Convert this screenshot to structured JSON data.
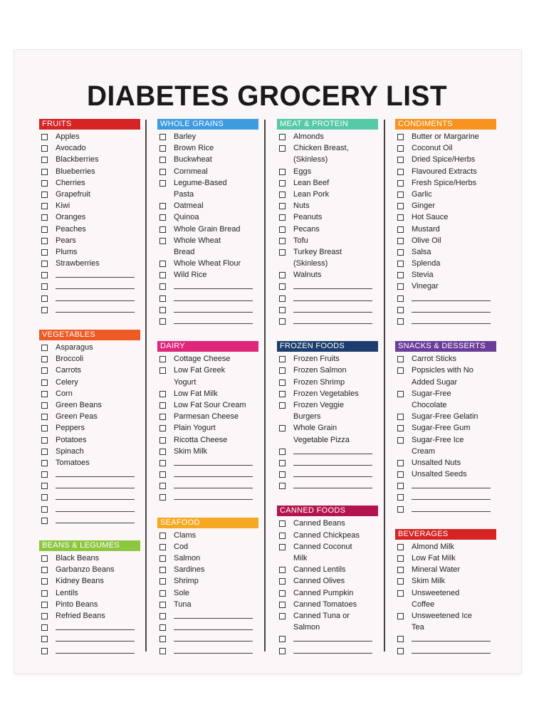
{
  "title": "DIABETES GROCERY LIST",
  "colors": {
    "fruits": "#d62424",
    "vegetables": "#ee5a24",
    "beans_legumes": "#8dc63f",
    "whole_grains": "#3d9be0",
    "dairy": "#e0267a",
    "seafood": "#f7a823",
    "meat_protein": "#55c9a8",
    "frozen_foods": "#1c3d6e",
    "canned_foods": "#b3144f",
    "condiments": "#f7931e",
    "snacks_desserts": "#6a3d9a",
    "beverages": "#d62424"
  },
  "columns": [
    {
      "sections": [
        {
          "key": "fruits",
          "title": "FRUITS",
          "gap_before": 0,
          "items": [
            [
              "Apples"
            ],
            [
              "Avocado"
            ],
            [
              "Blackberries"
            ],
            [
              "Blueberries"
            ],
            [
              "Cherries"
            ],
            [
              "Grapefruit"
            ],
            [
              "Kiwi"
            ],
            [
              "Oranges"
            ],
            [
              "Peaches"
            ],
            [
              "Pears"
            ],
            [
              "Plums"
            ],
            [
              "Strawberries"
            ],
            [
              ""
            ],
            [
              ""
            ],
            [
              ""
            ],
            [
              ""
            ]
          ]
        },
        {
          "key": "vegetables",
          "title": "VEGETABLES",
          "gap_before": 19,
          "items": [
            [
              "Asparagus"
            ],
            [
              "Broccoli"
            ],
            [
              "Carrots"
            ],
            [
              "Celery"
            ],
            [
              "Corn"
            ],
            [
              "Green Beans"
            ],
            [
              "Green Peas"
            ],
            [
              "Peppers"
            ],
            [
              "Potatoes"
            ],
            [
              "Spinach"
            ],
            [
              "Tomatoes"
            ],
            [
              ""
            ],
            [
              ""
            ],
            [
              ""
            ],
            [
              ""
            ],
            [
              ""
            ]
          ]
        },
        {
          "key": "beans_legumes",
          "title": "BEANS & LEGUMES",
          "gap_before": 19,
          "items": [
            [
              "Black Beans"
            ],
            [
              "Garbanzo Beans"
            ],
            [
              "Kidney Beans"
            ],
            [
              "Lentils"
            ],
            [
              "Pinto Beans"
            ],
            [
              "Refried Beans"
            ],
            [
              ""
            ],
            [
              ""
            ],
            [
              ""
            ]
          ]
        }
      ]
    },
    {
      "sections": [
        {
          "key": "whole_grains",
          "title": "WHOLE GRAINS",
          "gap_before": 0,
          "items": [
            [
              "Barley"
            ],
            [
              "Brown Rice"
            ],
            [
              "Buckwheat"
            ],
            [
              "Cornmeal"
            ],
            [
              "Legume-Based",
              "Pasta"
            ],
            [
              "Oatmeal"
            ],
            [
              "Quinoa"
            ],
            [
              "Whole Grain Bread"
            ],
            [
              "Whole Wheat",
              "Bread"
            ],
            [
              "Whole Wheat Flour"
            ],
            [
              "Wild Rice"
            ],
            [
              ""
            ],
            [
              ""
            ],
            [
              ""
            ],
            [
              ""
            ]
          ]
        },
        {
          "key": "dairy",
          "title": "DAIRY",
          "gap_before": 19,
          "items": [
            [
              "Cottage Cheese"
            ],
            [
              "Low Fat Greek",
              "Yogurt"
            ],
            [
              "Low Fat Milk"
            ],
            [
              "Low Fat Sour Cream"
            ],
            [
              "Parmesan Cheese"
            ],
            [
              "Plain Yogurt"
            ],
            [
              "Ricotta Cheese"
            ],
            [
              "Skim Milk"
            ],
            [
              ""
            ],
            [
              ""
            ],
            [
              ""
            ],
            [
              ""
            ]
          ]
        },
        {
          "key": "seafood",
          "title": "SEAFOOD",
          "gap_before": 19,
          "items": [
            [
              "Clams"
            ],
            [
              "Cod"
            ],
            [
              "Salmon"
            ],
            [
              "Sardines"
            ],
            [
              "Shrimp"
            ],
            [
              "Sole"
            ],
            [
              "Tuna"
            ],
            [
              ""
            ],
            [
              ""
            ],
            [
              ""
            ],
            [
              ""
            ]
          ]
        }
      ]
    },
    {
      "sections": [
        {
          "key": "meat_protein",
          "title": "MEAT & PROTEIN",
          "gap_before": 0,
          "items": [
            [
              "Almonds"
            ],
            [
              "Chicken Breast,",
              "(Skinless)"
            ],
            [
              "Eggs"
            ],
            [
              "Lean Beef"
            ],
            [
              "Lean Pork"
            ],
            [
              "Nuts"
            ],
            [
              "Peanuts"
            ],
            [
              "Pecans"
            ],
            [
              "Tofu"
            ],
            [
              "Turkey Breast",
              "(Skinless)"
            ],
            [
              "Walnuts"
            ],
            [
              ""
            ],
            [
              ""
            ],
            [
              ""
            ],
            [
              ""
            ]
          ]
        },
        {
          "key": "frozen_foods",
          "title": "FROZEN FOODS",
          "gap_before": 19,
          "items": [
            [
              "Frozen Fruits"
            ],
            [
              "Frozen Salmon"
            ],
            [
              "Frozen Shrimp"
            ],
            [
              "Frozen Vegetables"
            ],
            [
              "Frozen Veggie",
              "Burgers"
            ],
            [
              "Whole Grain",
              "Vegetable Pizza"
            ],
            [
              ""
            ],
            [
              ""
            ],
            [
              ""
            ],
            [
              ""
            ]
          ]
        },
        {
          "key": "canned_foods",
          "title": "CANNED FOODS",
          "gap_before": 19,
          "items": [
            [
              "Canned Beans"
            ],
            [
              "Canned Chickpeas"
            ],
            [
              "Canned Coconut",
              "Milk"
            ],
            [
              "Canned Lentils"
            ],
            [
              "Canned Olives"
            ],
            [
              "Canned Pumpkin"
            ],
            [
              "Canned Tomatoes"
            ],
            [
              "Canned Tuna or",
              "Salmon"
            ],
            [
              ""
            ],
            [
              ""
            ]
          ]
        }
      ]
    },
    {
      "sections": [
        {
          "key": "condiments",
          "title": "CONDIMENTS",
          "gap_before": 0,
          "items": [
            [
              "Butter or Margarine"
            ],
            [
              "Coconut Oil"
            ],
            [
              "Dried Spice/Herbs"
            ],
            [
              "Flavoured Extracts"
            ],
            [
              "Fresh Spice/Herbs"
            ],
            [
              "Garlic"
            ],
            [
              "Ginger"
            ],
            [
              "Hot Sauce"
            ],
            [
              "Mustard"
            ],
            [
              "Olive Oil"
            ],
            [
              "Salsa"
            ],
            [
              "Splenda"
            ],
            [
              "Stevia"
            ],
            [
              "Vinegar"
            ],
            [
              ""
            ],
            [
              ""
            ],
            [
              ""
            ]
          ]
        },
        {
          "key": "snacks_desserts",
          "title": "SNACKS & DESSERTS",
          "gap_before": 19,
          "items": [
            [
              "Carrot Sticks"
            ],
            [
              "Popsicles with No",
              "Added Sugar"
            ],
            [
              "Sugar-Free",
              "Chocolate"
            ],
            [
              "Sugar-Free Gelatin"
            ],
            [
              "Sugar-Free Gum"
            ],
            [
              "Sugar-Free Ice",
              "Cream"
            ],
            [
              "Unsalted Nuts"
            ],
            [
              "Unsalted Seeds"
            ],
            [
              ""
            ],
            [
              ""
            ],
            [
              ""
            ]
          ]
        },
        {
          "key": "beverages",
          "title": "BEVERAGES",
          "gap_before": 19,
          "items": [
            [
              "Almond Milk"
            ],
            [
              "Low Fat Milk"
            ],
            [
              "Mineral Water"
            ],
            [
              "Skim Milk"
            ],
            [
              "Unsweetened",
              "Coffee"
            ],
            [
              "Unsweetened Ice",
              "Tea"
            ],
            [
              ""
            ],
            [
              ""
            ]
          ]
        }
      ]
    }
  ]
}
